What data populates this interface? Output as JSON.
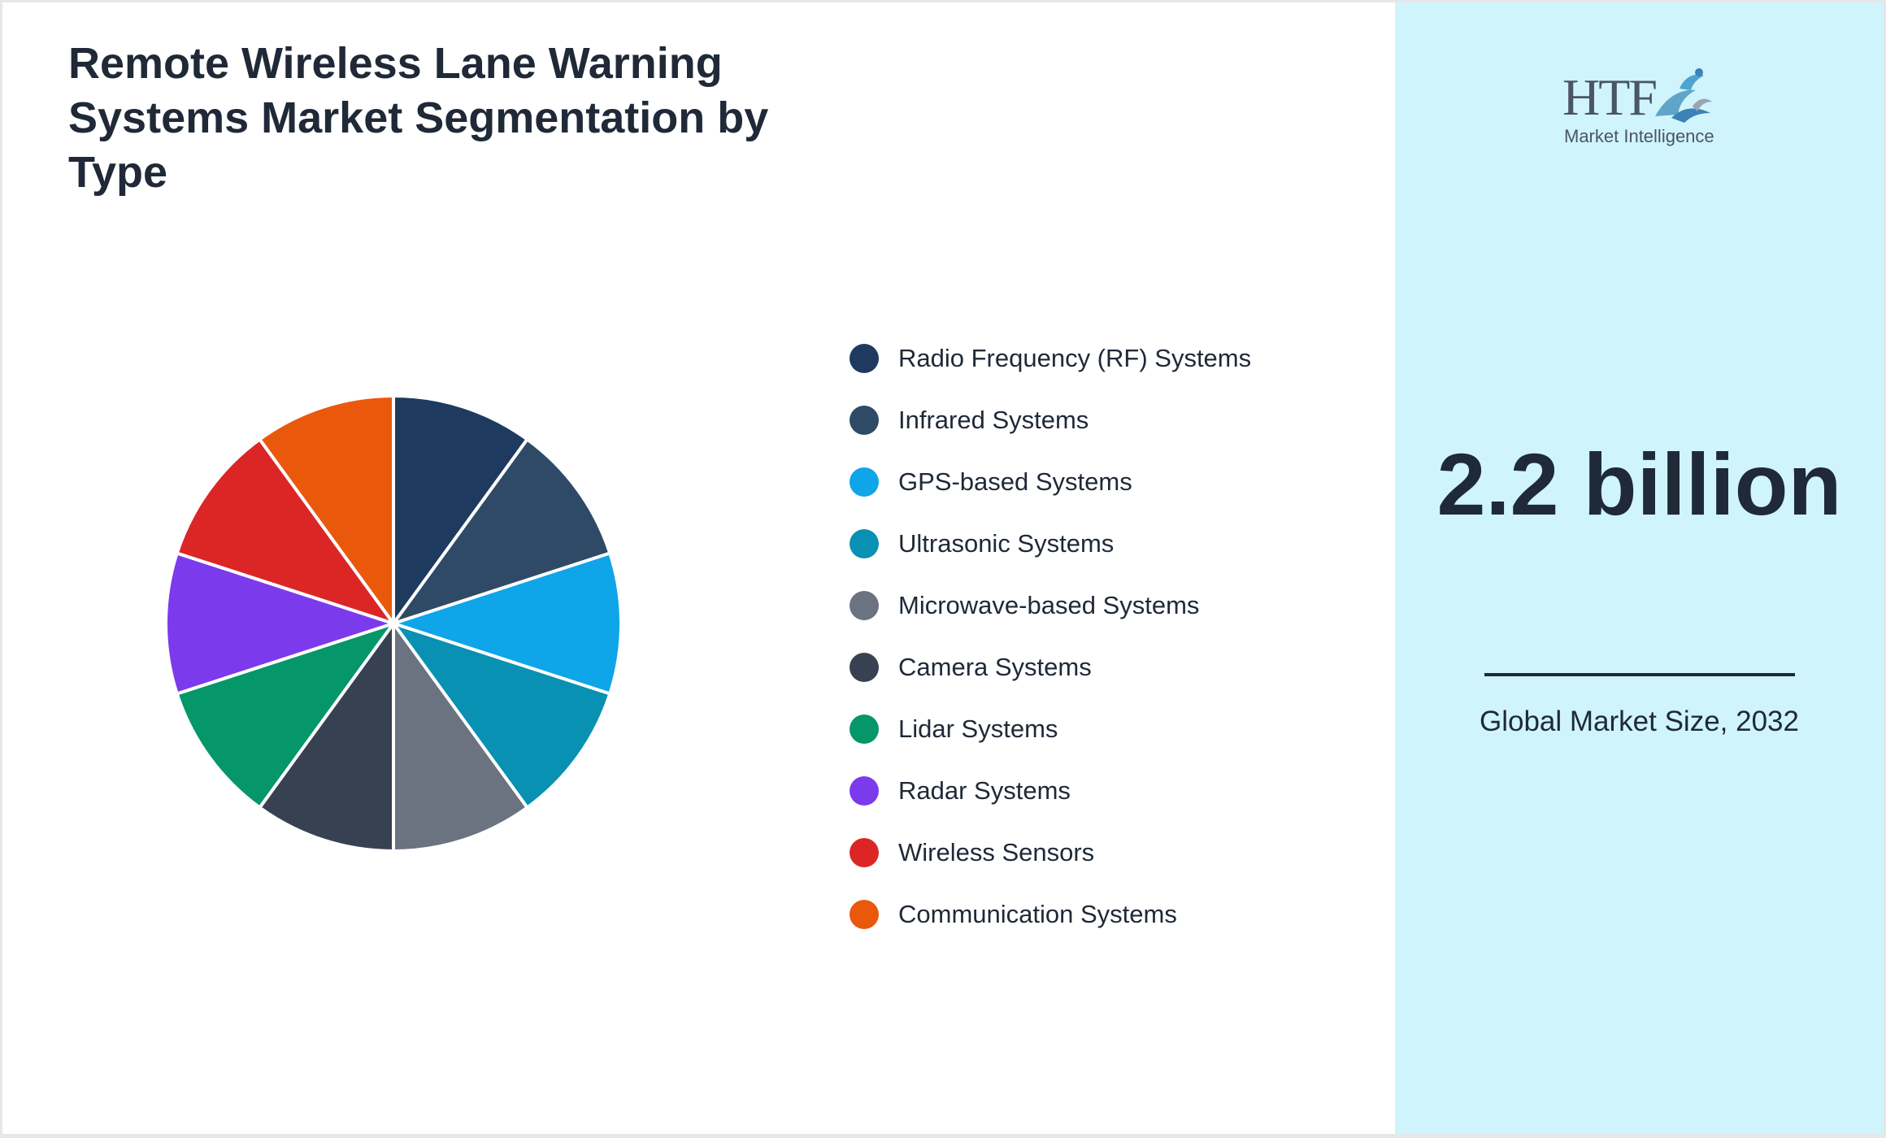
{
  "title": "Remote Wireless Lane Warning Systems Market Segmentation by Type",
  "chart_data": {
    "type": "pie",
    "title": "Remote Wireless Lane Warning Systems Market Segmentation by Type",
    "categories": [
      "Radio Frequency (RF) Systems",
      "Infrared Systems",
      "GPS-based Systems",
      "Ultrasonic Systems",
      "Microwave-based Systems",
      "Camera Systems",
      "Lidar Systems",
      "Radar Systems",
      "Wireless Sensors",
      "Communication Systems"
    ],
    "values": [
      10,
      10,
      10,
      10,
      10,
      10,
      10,
      10,
      10,
      10
    ],
    "colors": [
      "#1e3a5f",
      "#2f4a66",
      "#0ea5e9",
      "#0891b2",
      "#6b7280",
      "#374151",
      "#059669",
      "#7c3aed",
      "#dc2626",
      "#ea580c"
    ],
    "legend_position": "right"
  },
  "logo": {
    "brand": "HTF",
    "subtitle": "Market Intelligence",
    "icon": "dolphin-wave-logo-icon"
  },
  "stat": {
    "value": "2.2 billion",
    "caption": "Global Market Size, 2032"
  }
}
